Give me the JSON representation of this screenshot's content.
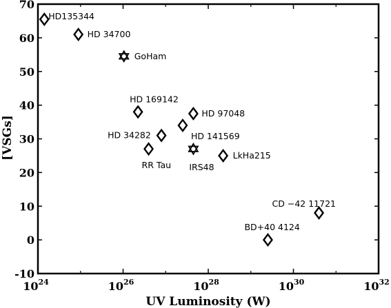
{
  "chart_data": {
    "type": "scatter",
    "title": "",
    "xlabel": "UV Luminosity (W)",
    "ylabel": "[VSGs]",
    "xscale": "log",
    "xlim_exponent": [
      24,
      32
    ],
    "ylim": [
      -10,
      70
    ],
    "x_ticks": [
      {
        "base": "10",
        "exp": "24"
      },
      {
        "base": "10",
        "exp": "26"
      },
      {
        "base": "10",
        "exp": "28"
      },
      {
        "base": "10",
        "exp": "30"
      },
      {
        "base": "10",
        "exp": "32"
      }
    ],
    "y_ticks": [
      "-10",
      "0",
      "10",
      "20",
      "30",
      "40",
      "50",
      "60",
      "70"
    ],
    "grid": false,
    "marker_colors": {
      "stroke": "#000000",
      "fill": "#ffffff"
    },
    "points": [
      {
        "label": "HD135344",
        "log_x": 24.15,
        "y": 65.5,
        "marker": "diamond"
      },
      {
        "label": "HD 34700",
        "log_x": 24.95,
        "y": 61,
        "marker": "diamond"
      },
      {
        "label": "GoHam",
        "log_x": 26.02,
        "y": 54.5,
        "marker": "star"
      },
      {
        "label": "HD 169142",
        "log_x": 26.35,
        "y": 38,
        "marker": "diamond"
      },
      {
        "label": "HD 97048",
        "log_x": 27.65,
        "y": 37.5,
        "marker": "diamond"
      },
      {
        "label": "HD 141569",
        "log_x": 27.4,
        "y": 34,
        "marker": "diamond"
      },
      {
        "label": "HD 34282",
        "log_x": 26.9,
        "y": 31,
        "marker": "diamond"
      },
      {
        "label": "RR Tau",
        "log_x": 26.6,
        "y": 27,
        "marker": "diamond"
      },
      {
        "label": "IRS48",
        "log_x": 27.65,
        "y": 27,
        "marker": "star"
      },
      {
        "label": "LkHa215",
        "log_x": 28.35,
        "y": 25,
        "marker": "diamond"
      },
      {
        "label": "CD −42 11721",
        "log_x": 30.6,
        "y": 8,
        "marker": "diamond"
      },
      {
        "label": "BD+40 4124",
        "log_x": 29.4,
        "y": 0,
        "marker": "diamond"
      }
    ]
  }
}
